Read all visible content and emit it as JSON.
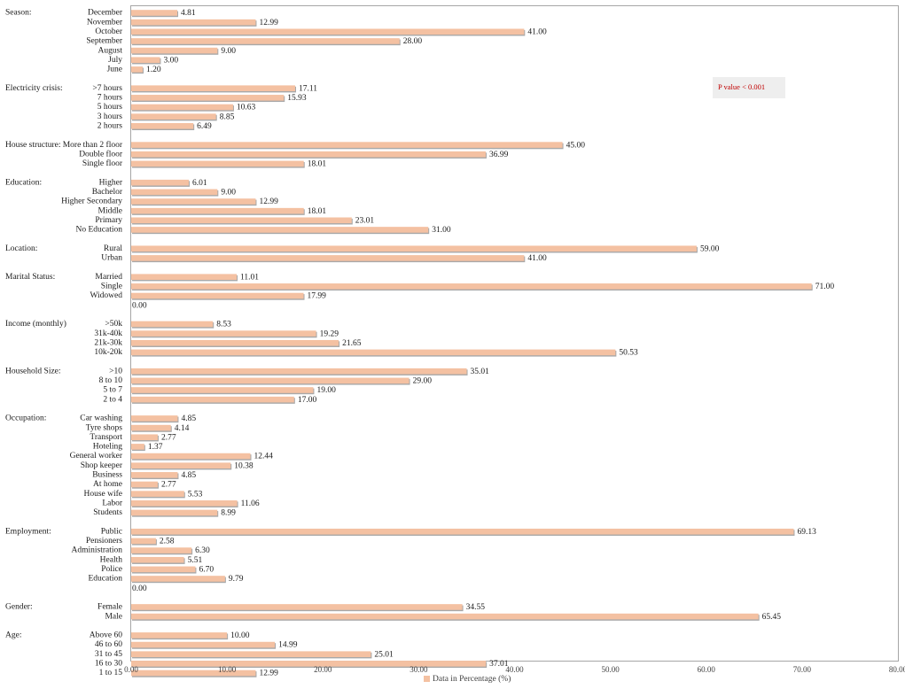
{
  "chart_data": {
    "type": "bar",
    "orientation": "horizontal",
    "xlim": [
      0,
      80
    ],
    "xticks": [
      "0.00",
      "10.00",
      "20.00",
      "30.00",
      "40.00",
      "50.00",
      "60.00",
      "70.00",
      "80.00"
    ],
    "legend": {
      "label": "Data in Percentage (%)",
      "position": "bottom"
    },
    "annotation": "P value   < 0.001",
    "grid": false,
    "colors": {
      "bar_fill": "#f4c1a2",
      "bar_shadow": "#a8a8a8",
      "annotation_text": "#c00000",
      "annotation_bg": "#eeeeee"
    },
    "groups": [
      {
        "label": "Season:",
        "items": [
          {
            "label": "December",
            "value": 4.81,
            "value_label": "4.81"
          },
          {
            "label": "November",
            "value": 12.99,
            "value_label": "12.99"
          },
          {
            "label": "October",
            "value": 41.0,
            "value_label": "41.00"
          },
          {
            "label": "September",
            "value": 28.0,
            "value_label": "28.00"
          },
          {
            "label": "August",
            "value": 9.0,
            "value_label": "9.00"
          },
          {
            "label": "July",
            "value": 3.0,
            "value_label": "3.00"
          },
          {
            "label": "June",
            "value": 1.2,
            "value_label": "1.20"
          }
        ]
      },
      {
        "label": "Electricity crisis:",
        "items": [
          {
            "label": ">7 hours",
            "value": 17.11,
            "value_label": "17.11"
          },
          {
            "label": "7 hours",
            "value": 15.93,
            "value_label": "15.93"
          },
          {
            "label": "5 hours",
            "value": 10.63,
            "value_label": "10.63"
          },
          {
            "label": "3 hours",
            "value": 8.85,
            "value_label": "8.85"
          },
          {
            "label": "2 hours",
            "value": 6.49,
            "value_label": "6.49"
          }
        ]
      },
      {
        "label": "House structure:",
        "items": [
          {
            "label": "More than 2 floor",
            "value": 45.0,
            "value_label": "45.00"
          },
          {
            "label": "Double floor",
            "value": 36.99,
            "value_label": "36.99"
          },
          {
            "label": "Single floor",
            "value": 18.01,
            "value_label": "18.01"
          }
        ]
      },
      {
        "label": "Education:",
        "items": [
          {
            "label": "Higher",
            "value": 6.01,
            "value_label": "6.01"
          },
          {
            "label": "Bachelor",
            "value": 9.0,
            "value_label": "9.00"
          },
          {
            "label": "Higher Secondary",
            "value": 12.99,
            "value_label": "12.99"
          },
          {
            "label": "Middle",
            "value": 18.01,
            "value_label": "18.01"
          },
          {
            "label": "Primary",
            "value": 23.01,
            "value_label": "23.01"
          },
          {
            "label": "No Education",
            "value": 31.0,
            "value_label": "31.00"
          }
        ]
      },
      {
        "label": "Location:",
        "items": [
          {
            "label": "Rural",
            "value": 59.0,
            "value_label": "59.00"
          },
          {
            "label": "Urban",
            "value": 41.0,
            "value_label": "41.00"
          }
        ]
      },
      {
        "label": "Marital Status:",
        "items": [
          {
            "label": "Married",
            "value": 11.01,
            "value_label": "11.01"
          },
          {
            "label": "Single",
            "value": 71.0,
            "value_label": "71.00"
          },
          {
            "label": "Widowed",
            "value": 17.99,
            "value_label": "17.99"
          },
          {
            "label": "",
            "value": 0,
            "value_label": "0.00"
          }
        ]
      },
      {
        "label": "Income (monthly)",
        "items": [
          {
            "label": ">50k",
            "value": 8.53,
            "value_label": "8.53"
          },
          {
            "label": "31k-40k",
            "value": 19.29,
            "value_label": "19.29"
          },
          {
            "label": "21k-30k",
            "value": 21.65,
            "value_label": "21.65"
          },
          {
            "label": "10k-20k",
            "value": 50.53,
            "value_label": "50.53"
          }
        ]
      },
      {
        "label": "Household Size:",
        "items": [
          {
            "label": ">10",
            "value": 35.01,
            "value_label": "35.01"
          },
          {
            "label": "8 to 10",
            "value": 29.0,
            "value_label": "29.00"
          },
          {
            "label": "5 to 7",
            "value": 19.0,
            "value_label": "19.00"
          },
          {
            "label": "2 to 4",
            "value": 17.0,
            "value_label": "17.00"
          }
        ]
      },
      {
        "label": "Occupation:",
        "items": [
          {
            "label": "Car washing",
            "value": 4.85,
            "value_label": "4.85"
          },
          {
            "label": "Tyre shops",
            "value": 4.14,
            "value_label": "4.14"
          },
          {
            "label": "Transport",
            "value": 2.77,
            "value_label": "2.77"
          },
          {
            "label": "Hoteling",
            "value": 1.37,
            "value_label": "1.37"
          },
          {
            "label": "General worker",
            "value": 12.44,
            "value_label": "12.44"
          },
          {
            "label": "Shop keeper",
            "value": 10.38,
            "value_label": "10.38"
          },
          {
            "label": "Business",
            "value": 4.85,
            "value_label": "4.85"
          },
          {
            "label": "At home",
            "value": 2.77,
            "value_label": "2.77"
          },
          {
            "label": "House wife",
            "value": 5.53,
            "value_label": "5.53"
          },
          {
            "label": "Labor",
            "value": 11.06,
            "value_label": "11.06"
          },
          {
            "label": "Students",
            "value": 8.99,
            "value_label": "8.99"
          }
        ]
      },
      {
        "label": "Employment:",
        "items": [
          {
            "label": "Public",
            "value": 69.13,
            "value_label": "69.13"
          },
          {
            "label": "Pensioners",
            "value": 2.58,
            "value_label": "2.58"
          },
          {
            "label": "Administration",
            "value": 6.3,
            "value_label": "6.30"
          },
          {
            "label": "Health",
            "value": 5.51,
            "value_label": "5.51"
          },
          {
            "label": "Police",
            "value": 6.7,
            "value_label": "6.70"
          },
          {
            "label": "Education",
            "value": 9.79,
            "value_label": "9.79"
          },
          {
            "label": "",
            "value": 0,
            "value_label": "0.00"
          }
        ]
      },
      {
        "label": "Gender:",
        "items": [
          {
            "label": "Female",
            "value": 34.55,
            "value_label": "34.55"
          },
          {
            "label": "Male",
            "value": 65.45,
            "value_label": "65.45"
          }
        ]
      },
      {
        "label": "Age:",
        "items": [
          {
            "label": "Above 60",
            "value": 10.0,
            "value_label": "10.00"
          },
          {
            "label": "46 to 60",
            "value": 14.99,
            "value_label": "14.99"
          },
          {
            "label": "31 to 45",
            "value": 25.01,
            "value_label": "25.01"
          },
          {
            "label": "16 to 30",
            "value": 37.01,
            "value_label": "37.01"
          },
          {
            "label": "1 to 15",
            "value": 12.99,
            "value_label": "12.99"
          }
        ]
      }
    ]
  }
}
